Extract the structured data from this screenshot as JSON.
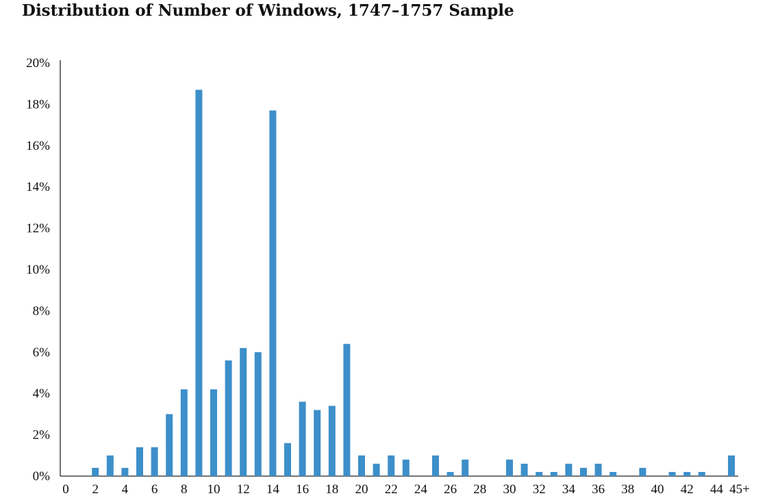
{
  "title": "Distribution of Number of Windows, 1747–1757 Sample",
  "chart_data": {
    "type": "bar",
    "title": "Distribution of Number of Windows, 1747–1757 Sample",
    "xlabel": "",
    "ylabel": "",
    "ylim": [
      0,
      20
    ],
    "grid": false,
    "bar_color": "#3d8fca",
    "y_ticks": [
      "0%",
      "2%",
      "4%",
      "6%",
      "8%",
      "10%",
      "12%",
      "14%",
      "16%",
      "18%",
      "20%"
    ],
    "x_tick_labels": [
      "0",
      "2",
      "4",
      "6",
      "8",
      "10",
      "12",
      "14",
      "16",
      "18",
      "20",
      "22",
      "24",
      "26",
      "28",
      "30",
      "32",
      "34",
      "36",
      "38",
      "40",
      "42",
      "44",
      "45+"
    ],
    "categories": [
      "0",
      "1",
      "2",
      "3",
      "4",
      "5",
      "6",
      "7",
      "8",
      "9",
      "10",
      "11",
      "12",
      "13",
      "14",
      "15",
      "16",
      "17",
      "18",
      "19",
      "20",
      "21",
      "22",
      "23",
      "24",
      "25",
      "26",
      "27",
      "28",
      "29",
      "30",
      "31",
      "32",
      "33",
      "34",
      "35",
      "36",
      "37",
      "38",
      "39",
      "40",
      "41",
      "42",
      "43",
      "44",
      "45+"
    ],
    "values": [
      0,
      0,
      0.4,
      1.0,
      0.4,
      1.4,
      1.4,
      3.0,
      4.2,
      18.7,
      4.2,
      5.6,
      6.2,
      6.0,
      17.7,
      1.6,
      3.6,
      3.2,
      3.4,
      6.4,
      1.0,
      0.6,
      1.0,
      0.8,
      0,
      1.0,
      0.2,
      0.8,
      0,
      0,
      0.8,
      0.6,
      0.2,
      0.2,
      0.6,
      0.4,
      0.6,
      0.2,
      0,
      0.4,
      0,
      0.2,
      0.2,
      0.2,
      0,
      1.0
    ]
  }
}
